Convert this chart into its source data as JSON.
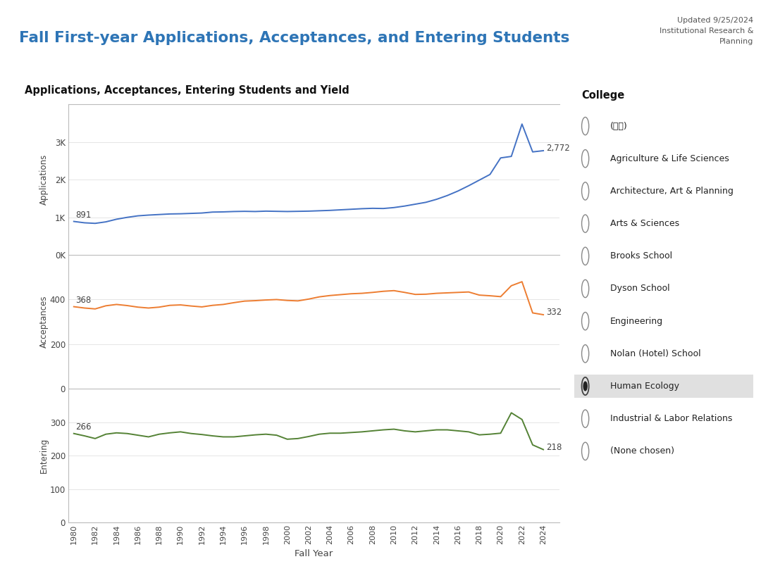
{
  "title": "Fall First-year Applications, Acceptances, and Entering Students",
  "subtitle": "Updated 9/25/2024\nInstitutional Research &\nPlanning",
  "chart_subtitle": "Applications, Acceptances, Entering Students and Yield",
  "xlabel": "Fall Year",
  "years": [
    1980,
    1981,
    1982,
    1983,
    1984,
    1985,
    1986,
    1987,
    1988,
    1989,
    1990,
    1991,
    1992,
    1993,
    1994,
    1995,
    1996,
    1997,
    1998,
    1999,
    2000,
    2001,
    2002,
    2003,
    2004,
    2005,
    2006,
    2007,
    2008,
    2009,
    2010,
    2011,
    2012,
    2013,
    2014,
    2015,
    2016,
    2017,
    2018,
    2019,
    2020,
    2021,
    2022,
    2023,
    2024
  ],
  "applications": [
    891,
    855,
    840,
    880,
    950,
    1000,
    1040,
    1060,
    1075,
    1090,
    1095,
    1105,
    1115,
    1140,
    1145,
    1155,
    1160,
    1155,
    1165,
    1160,
    1155,
    1160,
    1165,
    1175,
    1185,
    1200,
    1215,
    1230,
    1240,
    1235,
    1260,
    1300,
    1350,
    1400,
    1480,
    1580,
    1700,
    1840,
    1990,
    2140,
    2580,
    2620,
    3480,
    2740,
    2772
  ],
  "acceptances": [
    368,
    362,
    358,
    372,
    378,
    373,
    366,
    362,
    366,
    374,
    376,
    371,
    367,
    374,
    378,
    386,
    393,
    395,
    398,
    400,
    396,
    394,
    402,
    412,
    418,
    422,
    426,
    428,
    432,
    437,
    440,
    432,
    423,
    424,
    428,
    430,
    432,
    434,
    420,
    417,
    413,
    462,
    480,
    340,
    332
  ],
  "entering": [
    266,
    259,
    251,
    264,
    268,
    266,
    261,
    256,
    264,
    268,
    271,
    266,
    263,
    259,
    256,
    256,
    259,
    262,
    264,
    261,
    249,
    251,
    257,
    264,
    267,
    267,
    269,
    271,
    274,
    277,
    279,
    274,
    271,
    274,
    277,
    277,
    274,
    271,
    262,
    264,
    267,
    328,
    308,
    232,
    218
  ],
  "app_first_label": "891",
  "app_last_label": "2,772",
  "acc_first_label": "368",
  "acc_last_label": "332",
  "ent_first_label": "266",
  "ent_last_label": "218",
  "app_color": "#4472c4",
  "acc_color": "#ed7d31",
  "ent_color": "#548235",
  "bg_color": "#ffffff",
  "header_bg": "#e8e8e8",
  "panel_border": "#bbbbbb",
  "grid_color": "#e0e0e0",
  "college_options": [
    "(全部)",
    "Agriculture & Life Sciences",
    "Architecture, Art & Planning",
    "Arts & Sciences",
    "Brooks School",
    "Dyson School",
    "Engineering",
    "Nolan (Hotel) School",
    "Human Ecology",
    "Industrial & Labor Relations",
    "(None chosen)"
  ],
  "selected_college": "Human Ecology",
  "college_label": "College",
  "title_color": "#2e75b6",
  "label_color": "#444444",
  "app_ylim": [
    0,
    4000
  ],
  "app_yticks": [
    0,
    1000,
    2000,
    3000
  ],
  "app_ytick_labels": [
    "0K",
    "1K",
    "2K",
    "3K"
  ],
  "acc_ylim": [
    0,
    600
  ],
  "acc_yticks": [
    0,
    200,
    400
  ],
  "ent_ylim": [
    0,
    400
  ],
  "ent_yticks": [
    0,
    100,
    200,
    300
  ],
  "xlim": [
    1979.5,
    2025.5
  ]
}
